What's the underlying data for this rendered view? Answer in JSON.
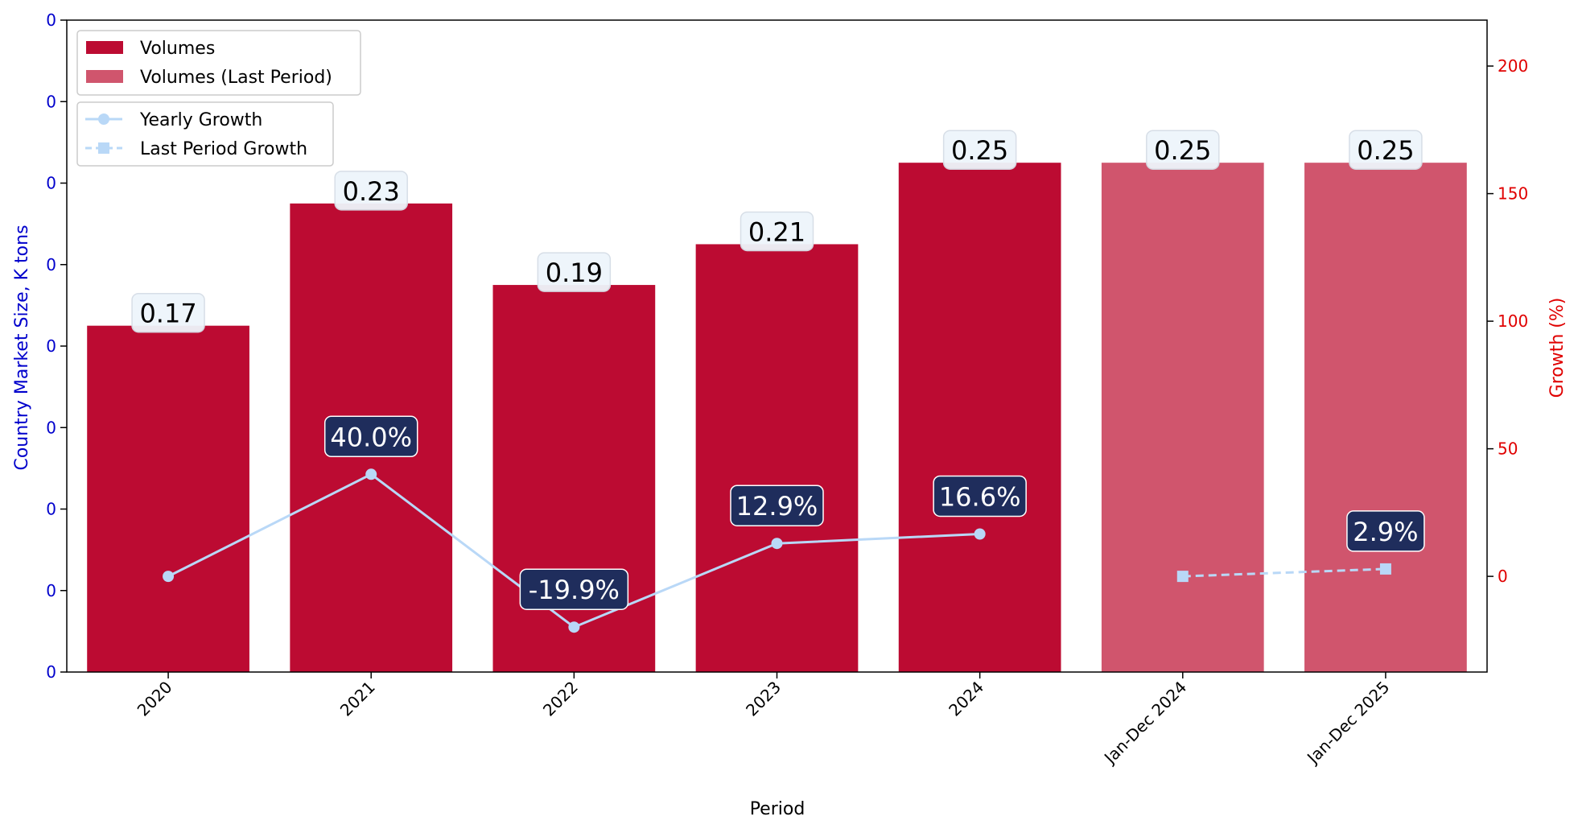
{
  "chart_data": {
    "type": "bar",
    "categories": [
      "2020",
      "2021",
      "2022",
      "2023",
      "2024",
      "Jan-Dec 2024",
      "Jan-Dec 2025"
    ],
    "xlabel": "Period",
    "ylabel_left": "Country Market Size, K tons",
    "ylabel_right": "Growth (%)",
    "ylim_left": [
      0.0,
      0.32
    ],
    "left_tick_values": [
      0.0,
      0.04,
      0.08,
      0.12,
      0.16,
      0.2,
      0.24,
      0.28,
      0.32
    ],
    "left_tick_labels": [
      "0",
      "0",
      "0",
      "0",
      "0",
      "0",
      "0",
      "0",
      "0"
    ],
    "ylim_right": [
      -37.5,
      218
    ],
    "right_ticks": [
      0,
      50,
      100,
      150,
      200
    ],
    "bar_series": [
      {
        "name": "Volumes",
        "values": [
          0.17,
          0.23,
          0.19,
          0.21,
          0.25,
          null,
          null
        ],
        "color": "#bc0b32"
      },
      {
        "name": "Volumes (Last Period)",
        "values": [
          null,
          null,
          null,
          null,
          null,
          0.25,
          0.25
        ],
        "color": "#d0556d"
      }
    ],
    "bar_labels": [
      "0.17",
      "0.23",
      "0.19",
      "0.21",
      "0.25",
      "0.25",
      "0.25"
    ],
    "line_series": [
      {
        "name": "Yearly Growth",
        "values": [
          0,
          40.0,
          -19.9,
          12.9,
          16.6,
          null,
          null
        ],
        "color": "#b9d8f7",
        "marker": "circle",
        "dash": "solid"
      },
      {
        "name": "Last Period Growth",
        "values": [
          null,
          null,
          null,
          null,
          null,
          0,
          2.9
        ],
        "color": "#b9d8f7",
        "marker": "square",
        "dash": "dashed"
      }
    ],
    "growth_labels": [
      null,
      "40.0%",
      "-19.9%",
      "12.9%",
      "16.6%",
      null,
      "2.9%"
    ],
    "legend_placement": "top-left",
    "left_axis_color": "#0000cc",
    "right_axis_color": "#e00000",
    "value_box_color": "#eef5fb",
    "growth_box_color": "#1f2d5c",
    "grid": false
  }
}
